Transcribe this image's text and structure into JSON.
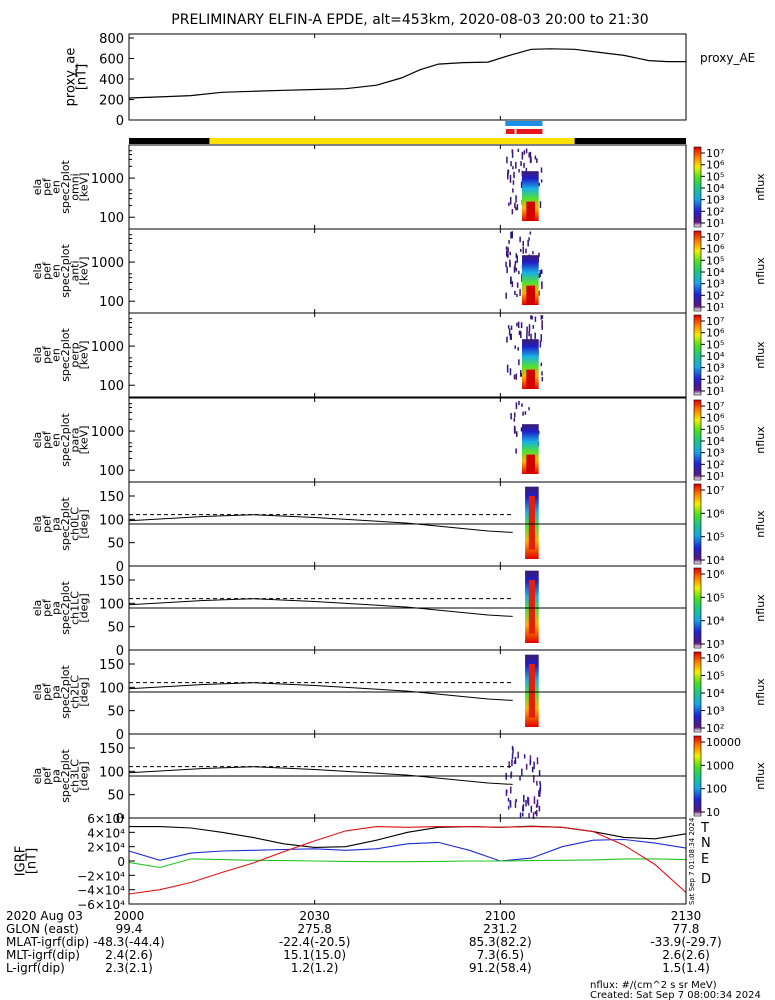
{
  "title": "PRELIMINARY ELFIN-A EPDE, alt=453km, 2020-08-03 20:00 to 21:30",
  "created": "Created: Sat Sep  7 08:00:34 2024",
  "units_note": "nflux: #/(cm^2 s sr MeV)",
  "side_stamp": "Sat Sep  7 01:08:34 2024",
  "colors": {
    "ae_line": "#000000",
    "bar_black": "#000000",
    "bar_yellow": "#ffe000",
    "marker_blue": "#1a8fe6",
    "marker_red": "#e8141c",
    "T": "#000000",
    "N": "#1e2bd8",
    "E": "#22c422",
    "D": "#e01414"
  },
  "time_axis": {
    "start_min": 0,
    "end_min": 90,
    "ticks": [
      {
        "min": 0,
        "label": "2000"
      },
      {
        "min": 30,
        "label": "2030"
      },
      {
        "min": 60,
        "label": "2100"
      },
      {
        "min": 90,
        "label": "2130"
      }
    ]
  },
  "orbit_bar": {
    "segments": [
      {
        "from": 0,
        "to": 13,
        "color": "black"
      },
      {
        "from": 13,
        "to": 72,
        "color": "yellow"
      },
      {
        "from": 72,
        "to": 90,
        "color": "black"
      }
    ],
    "marker_blue": [
      {
        "from": 60.8,
        "to": 66.8
      }
    ],
    "marker_red": [
      {
        "from": 60.9,
        "to": 62.3
      },
      {
        "from": 62.6,
        "to": 66.8
      }
    ]
  },
  "ae_panel": {
    "ylabel": "proxy_ae\n[nT]",
    "series_label": "proxy_AE",
    "ylim": [
      0,
      800
    ],
    "yticks": [
      0,
      200,
      400,
      600,
      800
    ],
    "chart_data": {
      "type": "line",
      "x_min": [
        0,
        5,
        10,
        15,
        20,
        25,
        30,
        35,
        40,
        44,
        47,
        50,
        54,
        58,
        62,
        65,
        68,
        72,
        76,
        80,
        84,
        87,
        90
      ],
      "values": [
        215,
        225,
        238,
        270,
        280,
        290,
        298,
        305,
        340,
        410,
        490,
        545,
        560,
        565,
        640,
        690,
        695,
        690,
        660,
        630,
        580,
        570,
        570
      ]
    }
  },
  "spec_panels": [
    {
      "lines": [
        "ela",
        "pef",
        "en",
        "spec2plot",
        "omni",
        "[keV]"
      ],
      "cb_ticks": [
        "10⁷",
        "10⁶",
        "10⁵",
        "10⁴",
        "10³",
        "10²",
        "10¹"
      ]
    },
    {
      "lines": [
        "ela",
        "pef",
        "en",
        "spec2plot",
        "anti",
        "[keV]"
      ],
      "cb_ticks": [
        "10⁷",
        "10⁶",
        "10⁵",
        "10⁴",
        "10³",
        "10²",
        "10¹"
      ]
    },
    {
      "lines": [
        "ela",
        "pef",
        "en",
        "spec2plot",
        "perp",
        "[keV]"
      ],
      "cb_ticks": [
        "10⁷",
        "10⁶",
        "10⁵",
        "10⁴",
        "10³",
        "10²",
        "10¹"
      ]
    },
    {
      "lines": [
        "ela",
        "pef",
        "en",
        "spec2plot",
        "para",
        "[keV]"
      ],
      "cb_ticks": [
        "10⁷",
        "10⁶",
        "10⁵",
        "10⁴",
        "10³",
        "10²",
        "10¹"
      ]
    }
  ],
  "spec_yticks": [
    {
      "value": 1000,
      "label": "1000"
    },
    {
      "value": 100,
      "label": "100"
    }
  ],
  "pa_panels": [
    {
      "lines": [
        "ela",
        "pef",
        "pa",
        "spec2plot",
        "ch0LC",
        "[deg]"
      ],
      "cb_ticks": [
        "10⁷",
        "10⁶",
        "10⁵",
        "10⁴"
      ]
    },
    {
      "lines": [
        "ela",
        "pef",
        "pa",
        "spec2plot",
        "ch1LC",
        "[deg]"
      ],
      "cb_ticks": [
        "10⁶",
        "10⁵",
        "10⁴",
        "10³"
      ]
    },
    {
      "lines": [
        "ela",
        "pef",
        "pa",
        "spec2plot",
        "ch2LC",
        "[deg]"
      ],
      "cb_ticks": [
        "10⁶",
        "10⁵",
        "10⁴",
        "10³",
        "10²"
      ]
    },
    {
      "lines": [
        "ela",
        "pef",
        "pa",
        "spec2plot",
        "ch3LC",
        "[deg]"
      ],
      "cb_ticks": [
        "10000",
        "1000",
        "100",
        "10"
      ]
    }
  ],
  "pa_yticks": [
    "0",
    "50",
    "100",
    "150"
  ],
  "pa_lines": {
    "loss_cone": {
      "x_min": [
        0,
        12,
        20,
        30,
        45,
        58,
        62
      ],
      "deg": [
        97,
        106,
        110,
        104,
        92,
        75,
        72
      ]
    },
    "antiloss": {
      "deg": 110
    },
    "ninety": {
      "deg": 90
    }
  },
  "cb_label": "nflux",
  "igrf_panel": {
    "ylabel": "IGRF\n[nT]",
    "ylim": [
      -60000,
      60000
    ],
    "yticks": [
      "6×10⁴",
      "4×10⁴",
      "2×10⁴",
      "0",
      "−2×10⁴",
      "−4×10⁴",
      "−6×10⁴"
    ],
    "legend": [
      "T",
      "N",
      "E",
      "D"
    ],
    "chart_data": {
      "type": "line",
      "x_min": [
        0,
        5,
        10,
        15,
        20,
        25,
        30,
        35,
        40,
        45,
        50,
        55,
        60,
        65,
        70,
        75,
        80,
        85,
        90
      ],
      "series": [
        {
          "name": "T",
          "values": [
            48000,
            48000,
            46000,
            40000,
            33000,
            24000,
            19000,
            20000,
            29000,
            40000,
            47000,
            48000,
            47000,
            48500,
            47000,
            41000,
            33000,
            31000,
            38000
          ]
        },
        {
          "name": "N",
          "values": [
            14000,
            1000,
            11000,
            14000,
            15000,
            16000,
            17000,
            15000,
            17000,
            24000,
            26000,
            15000,
            0,
            4000,
            20000,
            29000,
            30000,
            25000,
            18000
          ]
        },
        {
          "name": "E",
          "values": [
            -2000,
            -9000,
            3000,
            2000,
            1000,
            500,
            0,
            -500,
            -1000,
            -1000,
            -500,
            0,
            0,
            500,
            1000,
            1500,
            3000,
            3000,
            2000
          ]
        },
        {
          "name": "D",
          "values": [
            -46000,
            -40000,
            -30000,
            -16000,
            -3000,
            13000,
            28000,
            42000,
            48000,
            47000,
            48000,
            48000,
            47000,
            48000,
            47000,
            41000,
            22000,
            -5000,
            -44000
          ]
        }
      ]
    }
  },
  "footer": {
    "rows": [
      {
        "label": "2020 Aug 03",
        "vals": [
          "2000",
          "2030",
          "2100",
          "2130"
        ]
      },
      {
        "label": "GLON (east)",
        "vals": [
          "99.4",
          "275.8",
          "231.2",
          "77.8"
        ]
      },
      {
        "label": "MLAT-igrf(dip)",
        "vals": [
          "-48.3(-44.4)",
          "-22.4(-20.5)",
          "85.3(82.2)",
          "-33.9(-29.7)"
        ]
      },
      {
        "label": "MLT-igrf(dip)",
        "vals": [
          "2.4(2.6)",
          "15.1(15.0)",
          "7.3(6.5)",
          "2.6(2.6)"
        ]
      },
      {
        "label": "L-igrf(dip)",
        "vals": [
          "2.3(2.1)",
          "1.2(1.2)",
          "91.2(58.4)",
          "1.5(1.4)"
        ]
      }
    ]
  }
}
